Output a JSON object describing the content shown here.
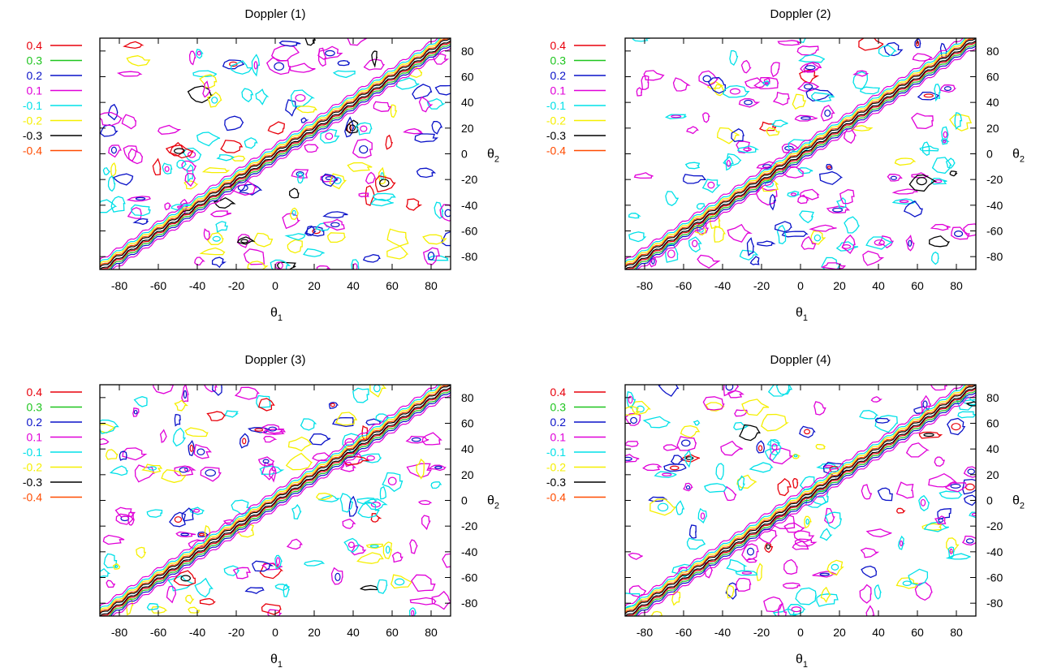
{
  "legend": {
    "levels": [
      {
        "label": "0.4",
        "color": "#e8000b"
      },
      {
        "label": "0.3",
        "color": "#1ec51e"
      },
      {
        "label": "0.2",
        "color": "#0a12c8"
      },
      {
        "label": "0.1",
        "color": "#e000d8"
      },
      {
        "label": "-0.1",
        "color": "#00e0e8"
      },
      {
        "label": "-0.2",
        "color": "#f5ef00"
      },
      {
        "label": "-0.3",
        "color": "#000000"
      },
      {
        "label": "-0.4",
        "color": "#ff4b00"
      }
    ]
  },
  "axis_labels": {
    "x_symbol": "θ",
    "x_sub": "1",
    "y_symbol": "θ",
    "y_sub": "2"
  },
  "chart_data": [
    {
      "type": "contour",
      "title": "Doppler (1)",
      "xlabel": "θ1",
      "ylabel": "θ2",
      "xlim": [
        -90,
        90
      ],
      "ylim": [
        -90,
        90
      ],
      "xticks": [
        -80,
        -60,
        -40,
        -20,
        0,
        20,
        40,
        60,
        80
      ],
      "yticks": [
        80,
        60,
        40,
        20,
        0,
        -20,
        -40,
        -60,
        -80
      ],
      "contour_levels": [
        0.4,
        0.3,
        0.2,
        0.1,
        -0.1,
        -0.2,
        -0.3,
        -0.4
      ],
      "diagonal": "θ2 = θ1",
      "seed": 11
    },
    {
      "type": "contour",
      "title": "Doppler (2)",
      "xlabel": "θ1",
      "ylabel": "θ2",
      "xlim": [
        -90,
        90
      ],
      "ylim": [
        -90,
        90
      ],
      "xticks": [
        -80,
        -60,
        -40,
        -20,
        0,
        20,
        40,
        60,
        80
      ],
      "yticks": [
        80,
        60,
        40,
        20,
        0,
        -20,
        -40,
        -60,
        -80
      ],
      "contour_levels": [
        0.4,
        0.3,
        0.2,
        0.1,
        -0.1,
        -0.2,
        -0.3,
        -0.4
      ],
      "diagonal": "θ2 = θ1",
      "seed": 23
    },
    {
      "type": "contour",
      "title": "Doppler (3)",
      "xlabel": "θ1",
      "ylabel": "θ2",
      "xlim": [
        -90,
        90
      ],
      "ylim": [
        -90,
        90
      ],
      "xticks": [
        -80,
        -60,
        -40,
        -20,
        0,
        20,
        40,
        60,
        80
      ],
      "yticks": [
        80,
        60,
        40,
        20,
        0,
        -20,
        -40,
        -60,
        -80
      ],
      "contour_levels": [
        0.4,
        0.3,
        0.2,
        0.1,
        -0.1,
        -0.2,
        -0.3,
        -0.4
      ],
      "diagonal": "θ2 = θ1",
      "seed": 37
    },
    {
      "type": "contour",
      "title": "Doppler (4)",
      "xlabel": "θ1",
      "ylabel": "θ2",
      "xlim": [
        -90,
        90
      ],
      "ylim": [
        -90,
        90
      ],
      "xticks": [
        -80,
        -60,
        -40,
        -20,
        0,
        20,
        40,
        60,
        80
      ],
      "yticks": [
        80,
        60,
        40,
        20,
        0,
        -20,
        -40,
        -60,
        -80
      ],
      "contour_levels": [
        0.4,
        0.3,
        0.2,
        0.1,
        -0.1,
        -0.2,
        -0.3,
        -0.4
      ],
      "diagonal": "θ2 = θ1",
      "seed": 51
    }
  ]
}
